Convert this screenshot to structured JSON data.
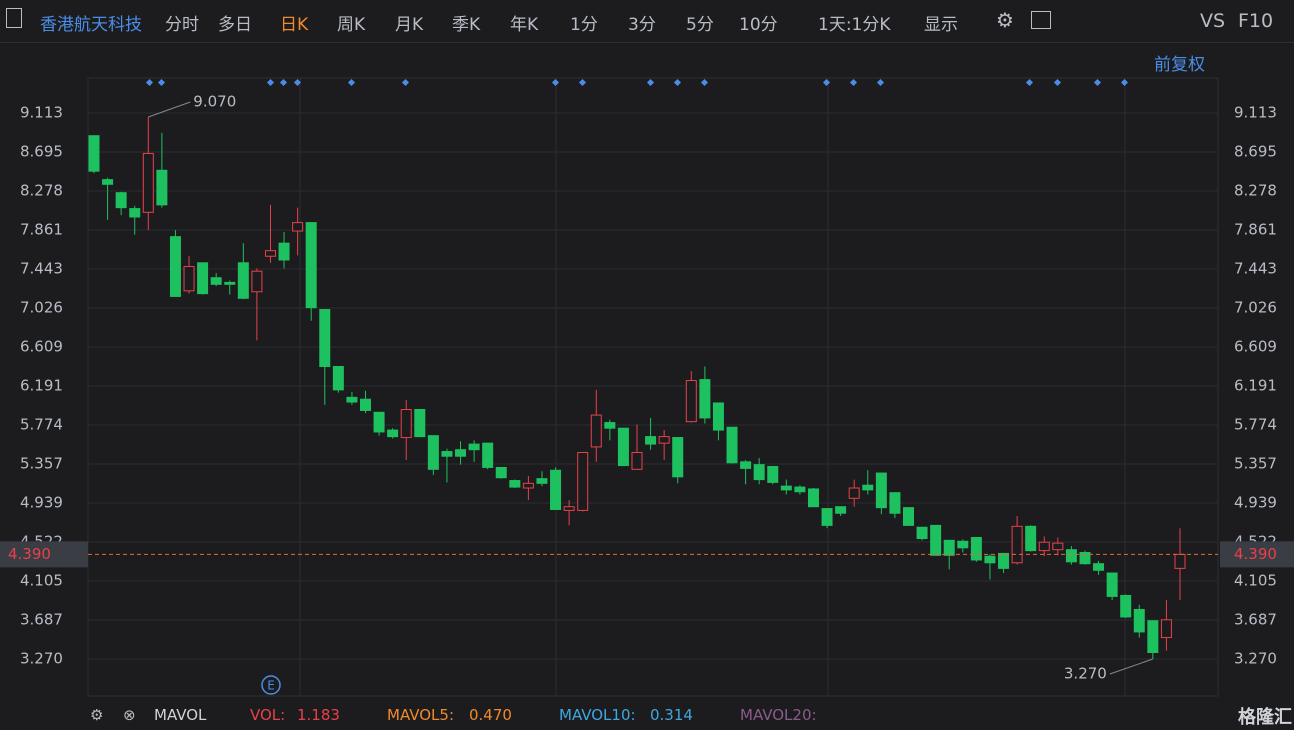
{
  "toolbar": {
    "stock_name": "香港航天科技",
    "tabs": [
      "分时",
      "多日",
      "日K",
      "周K",
      "月K",
      "季K",
      "年K",
      "1分",
      "3分",
      "5分",
      "10分"
    ],
    "active_tab": "日K",
    "period": "1天:1分K",
    "display": "显示",
    "vs": "VS",
    "f10": "F10",
    "adjust": "前复权"
  },
  "chart_data": {
    "type": "candlestick",
    "up_color": "#e8414b",
    "down_color": "#1ec15f",
    "open": [
      8.87,
      8.4,
      8.26,
      8.09,
      8.05,
      8.5,
      7.79,
      7.21,
      7.51,
      7.35,
      7.3,
      7.51,
      7.2,
      7.58,
      7.72,
      7.85,
      7.94,
      7.01,
      6.4,
      6.07,
      6.05,
      5.91,
      5.72,
      5.64,
      5.94,
      5.66,
      5.49,
      5.51,
      5.57,
      5.58,
      5.32,
      5.18,
      5.1,
      5.2,
      5.29,
      4.86,
      4.86,
      5.54,
      5.8,
      5.74,
      5.3,
      5.65,
      5.58,
      5.64,
      5.81,
      6.26,
      6.01,
      5.75,
      5.38,
      5.35,
      5.33,
      5.12,
      5.11,
      5.09,
      4.88,
      4.9,
      4.99,
      5.13,
      5.26,
      5.05,
      4.89,
      4.68,
      4.7,
      4.54,
      4.53,
      4.57,
      4.37,
      4.4,
      4.3,
      4.69,
      4.43,
      4.44,
      4.44,
      4.41,
      4.29,
      4.19,
      3.95,
      3.8,
      3.68,
      3.5,
      4.24
    ],
    "high": [
      8.87,
      8.42,
      8.27,
      8.12,
      9.07,
      8.9,
      7.86,
      7.58,
      7.51,
      7.4,
      7.32,
      7.72,
      7.45,
      8.13,
      7.84,
      8.1,
      7.94,
      7.01,
      6.4,
      6.13,
      6.14,
      5.91,
      5.74,
      6.04,
      5.94,
      5.66,
      5.52,
      5.6,
      5.61,
      5.58,
      5.32,
      5.19,
      5.23,
      5.28,
      5.32,
      4.97,
      5.48,
      6.15,
      5.83,
      5.74,
      5.78,
      5.85,
      5.72,
      5.64,
      6.35,
      6.4,
      6.01,
      5.75,
      5.4,
      5.42,
      5.33,
      5.19,
      5.13,
      5.1,
      4.88,
      4.9,
      5.19,
      5.29,
      5.26,
      5.05,
      4.89,
      4.68,
      4.7,
      4.54,
      4.55,
      4.57,
      4.39,
      4.4,
      4.8,
      4.7,
      4.58,
      4.57,
      4.48,
      4.43,
      4.32,
      4.19,
      3.96,
      3.85,
      3.68,
      3.9,
      4.67
    ],
    "low": [
      8.47,
      7.97,
      8.02,
      7.81,
      7.86,
      8.1,
      7.15,
      7.18,
      7.17,
      7.26,
      7.17,
      7.12,
      6.68,
      7.51,
      7.45,
      7.59,
      6.89,
      5.99,
      6.12,
      5.99,
      5.9,
      5.66,
      5.63,
      5.4,
      5.65,
      5.24,
      5.16,
      5.35,
      5.38,
      5.3,
      5.2,
      5.1,
      4.97,
      5.12,
      4.87,
      4.7,
      4.85,
      5.38,
      5.61,
      5.34,
      5.3,
      5.51,
      5.4,
      5.15,
      5.8,
      5.79,
      5.61,
      5.36,
      5.14,
      5.14,
      5.14,
      5.03,
      5.03,
      4.9,
      4.67,
      4.8,
      4.9,
      5.03,
      4.82,
      4.78,
      4.7,
      4.54,
      4.38,
      4.23,
      4.41,
      4.31,
      4.12,
      4.19,
      4.28,
      4.42,
      4.37,
      4.38,
      4.28,
      4.28,
      4.17,
      3.9,
      3.71,
      3.5,
      3.27,
      3.36,
      3.9
    ],
    "close": [
      8.49,
      8.35,
      8.1,
      8.0,
      8.68,
      8.13,
      7.15,
      7.47,
      7.18,
      7.28,
      7.28,
      7.13,
      7.42,
      7.64,
      7.54,
      7.94,
      7.03,
      6.4,
      6.15,
      6.02,
      5.93,
      5.7,
      5.65,
      5.94,
      5.65,
      5.3,
      5.44,
      5.44,
      5.51,
      5.32,
      5.21,
      5.11,
      5.15,
      5.15,
      4.87,
      4.9,
      5.48,
      5.88,
      5.74,
      5.34,
      5.48,
      5.57,
      5.65,
      5.22,
      6.25,
      5.85,
      5.72,
      5.37,
      5.31,
      5.19,
      5.16,
      5.08,
      5.06,
      4.9,
      4.7,
      4.83,
      5.1,
      5.08,
      4.89,
      4.83,
      4.7,
      4.56,
      4.38,
      4.38,
      4.46,
      4.33,
      4.3,
      4.24,
      4.69,
      4.43,
      4.52,
      4.51,
      4.31,
      4.29,
      4.22,
      3.94,
      3.72,
      3.56,
      3.34,
      3.69,
      4.39
    ],
    "ylim": [
      2.885,
      9.466
    ],
    "yticks": [
      9.113,
      8.695,
      8.278,
      7.861,
      7.443,
      7.026,
      6.609,
      6.191,
      5.774,
      5.357,
      4.939,
      4.522,
      4.105,
      3.687,
      {
        "value": 3.27,
        "label": "3.270"
      }
    ],
    "last_price": {
      "value": 4.39,
      "label": "4.390"
    },
    "high_label": "9.070",
    "low_label": "3.270"
  },
  "indicator": {
    "name": "MAVOL",
    "vol_label": "VOL:",
    "vol": "1.183",
    "ma5_label": "MAVOL5:",
    "ma5": "0.470",
    "ma10_label": "MAVOL10:",
    "ma10": "0.314",
    "ma20_label": "MAVOL20:"
  },
  "brand": "格隆汇"
}
